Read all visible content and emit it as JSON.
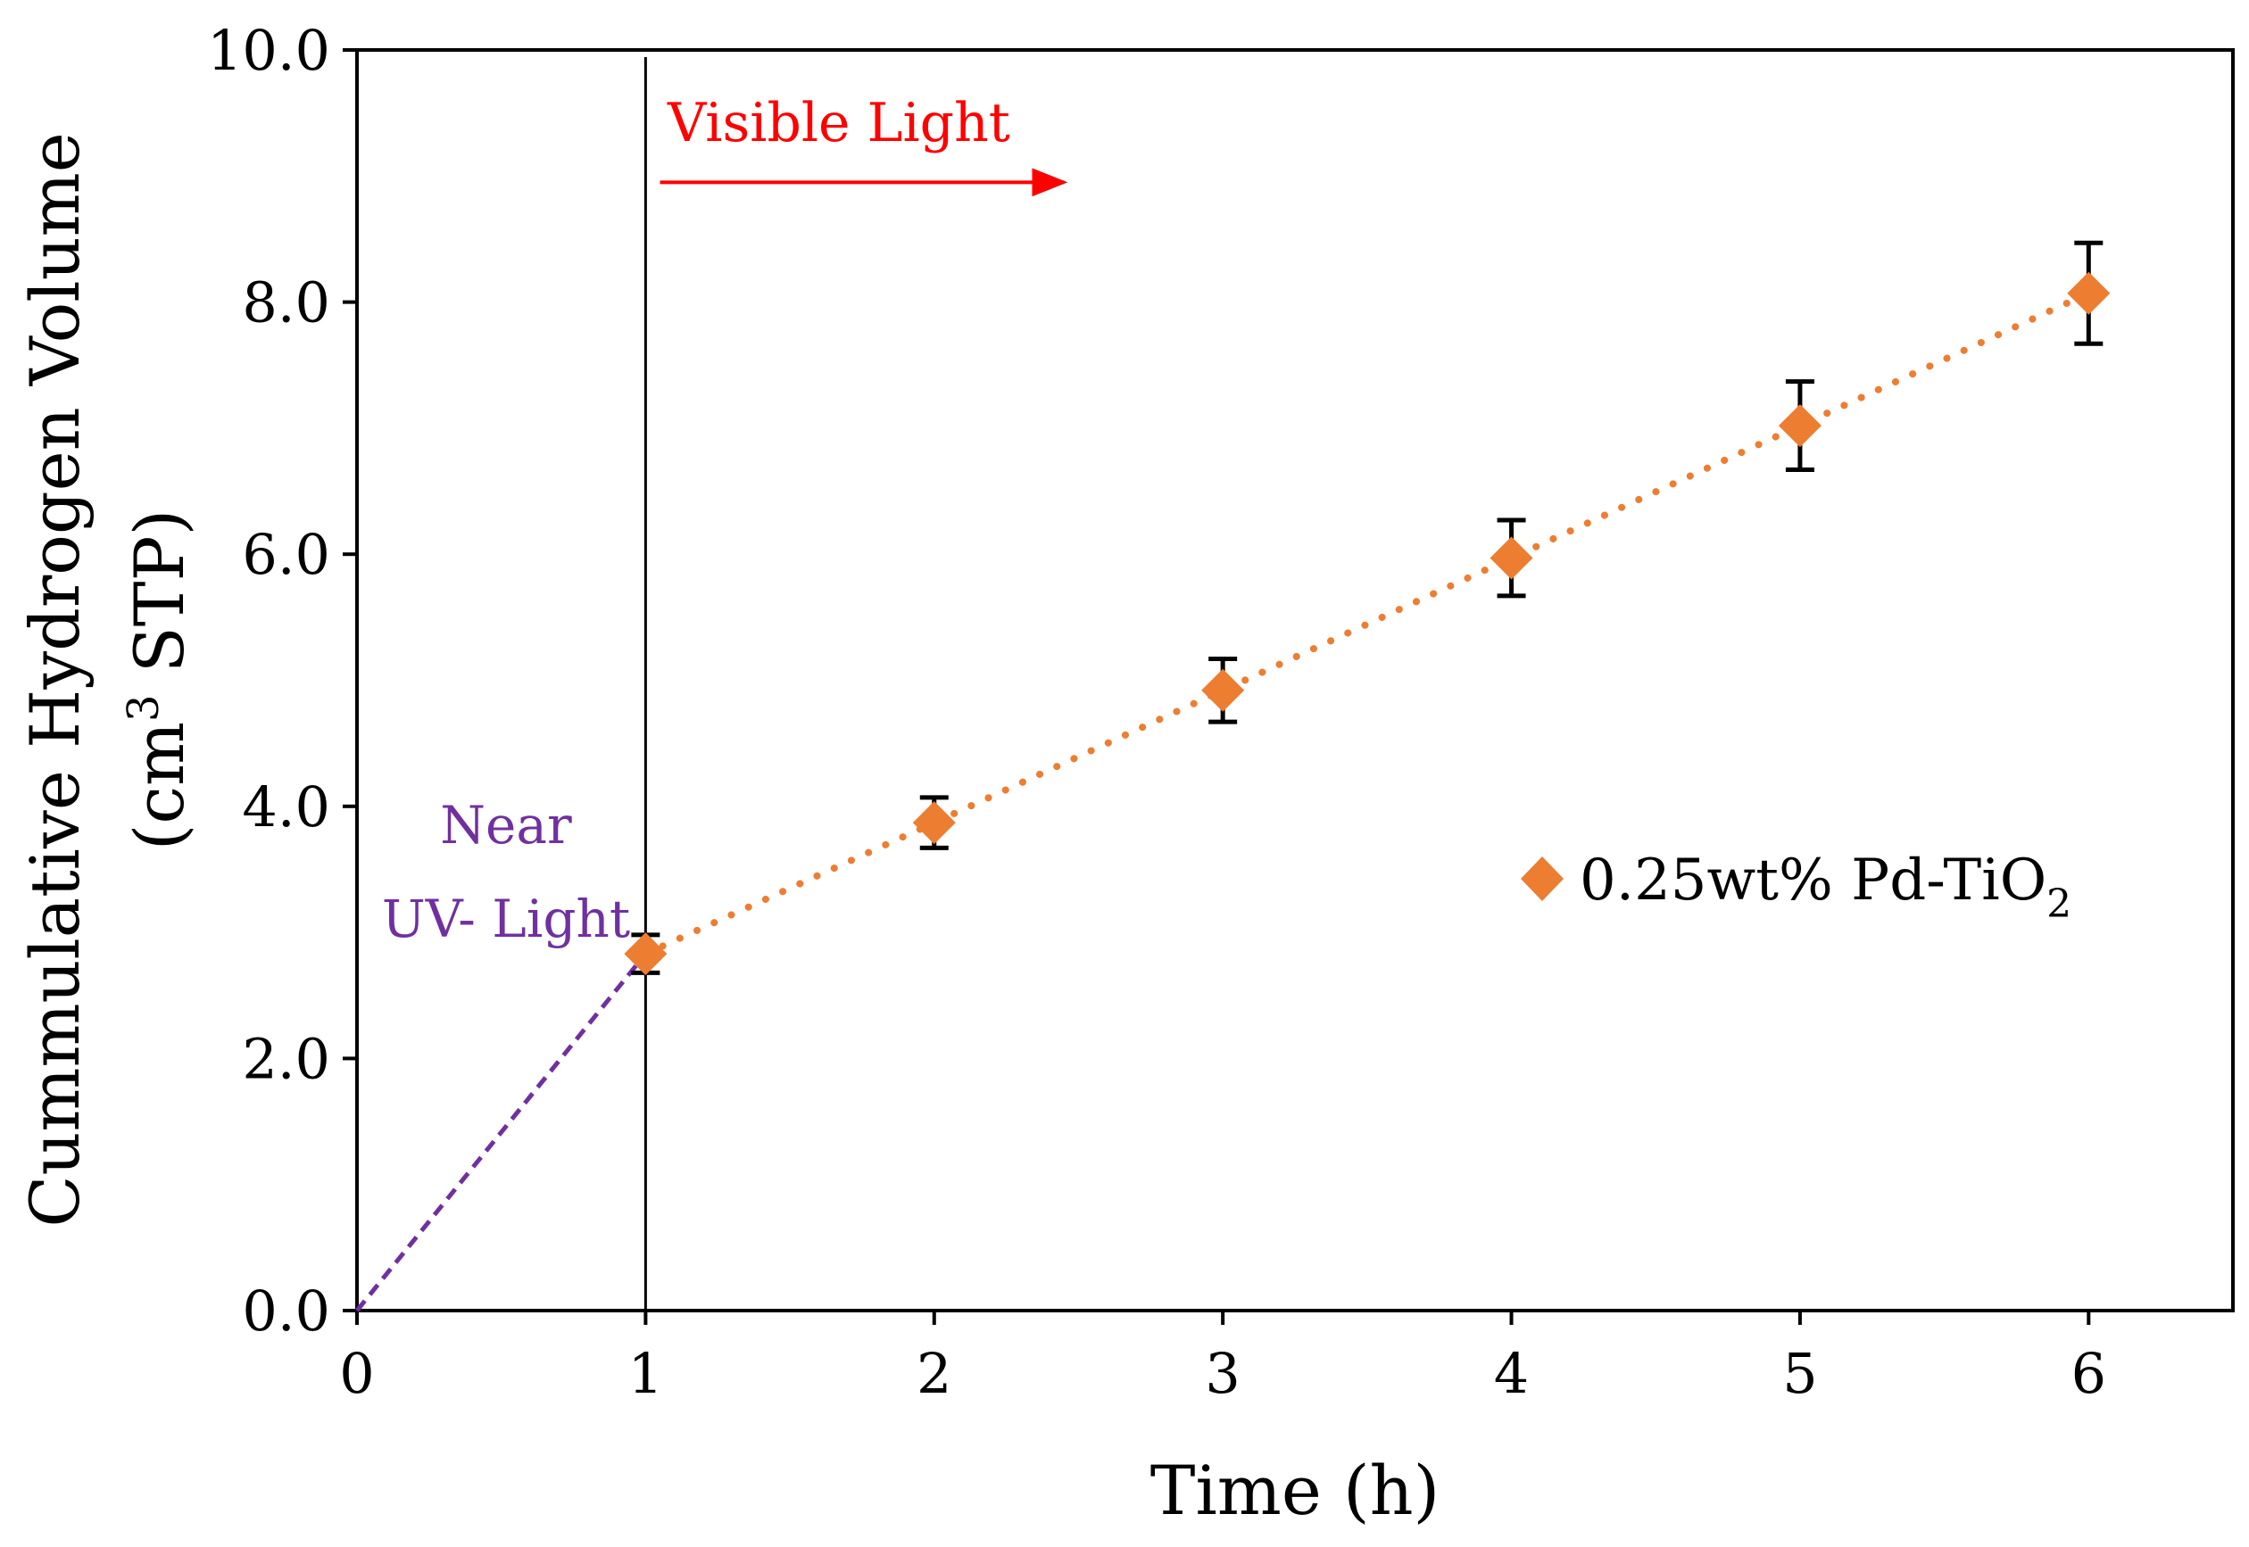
{
  "chart_data": {
    "type": "scatter",
    "title": "",
    "xlabel": "Time (h)",
    "ylabel_line1": "Cummulative Hydrogen Volume",
    "ylabel_line2_prefix": "(cm",
    "ylabel_line2_sup": "3",
    "ylabel_line2_suffix": " STP)",
    "xlim": [
      0,
      6.5
    ],
    "ylim": [
      0,
      10
    ],
    "xticks": [
      0,
      1,
      2,
      3,
      4,
      5,
      6
    ],
    "yticks": [
      0,
      2,
      4,
      6,
      8,
      10
    ],
    "xtick_labels": [
      "0",
      "1",
      "2",
      "3",
      "4",
      "5",
      "6"
    ],
    "ytick_labels": [
      "0.0",
      "2.0",
      "4.0",
      "6.0",
      "8.0",
      "10.0"
    ],
    "series": [
      {
        "name_prefix": "0.25wt% Pd-TiO",
        "name_sub": "2",
        "x": [
          1,
          2,
          3,
          4,
          5,
          6
        ],
        "y": [
          2.83,
          3.87,
          4.92,
          5.97,
          7.02,
          8.07
        ],
        "err": [
          0.15,
          0.2,
          0.25,
          0.3,
          0.35,
          0.4
        ],
        "color": "#ED7D31",
        "marker": "diamond",
        "line_style": "dotted"
      }
    ],
    "uv_segment": {
      "x": [
        0,
        1
      ],
      "y": [
        0,
        2.83
      ],
      "color": "#7030A0",
      "line_style": "dashed"
    },
    "vertical_line_x": 1,
    "annotations": {
      "visible_light": {
        "text": "Visible Light",
        "color": "#FF0000",
        "arrow_from_x": 1.05,
        "arrow_to_x": 2.45,
        "y": 8.95
      },
      "near_uv_line1": {
        "text": "Near",
        "color": "#7030A0"
      },
      "near_uv_line2": {
        "text": "UV- Light",
        "color": "#7030A0"
      }
    },
    "legend_position": "right-center",
    "grid": false
  }
}
